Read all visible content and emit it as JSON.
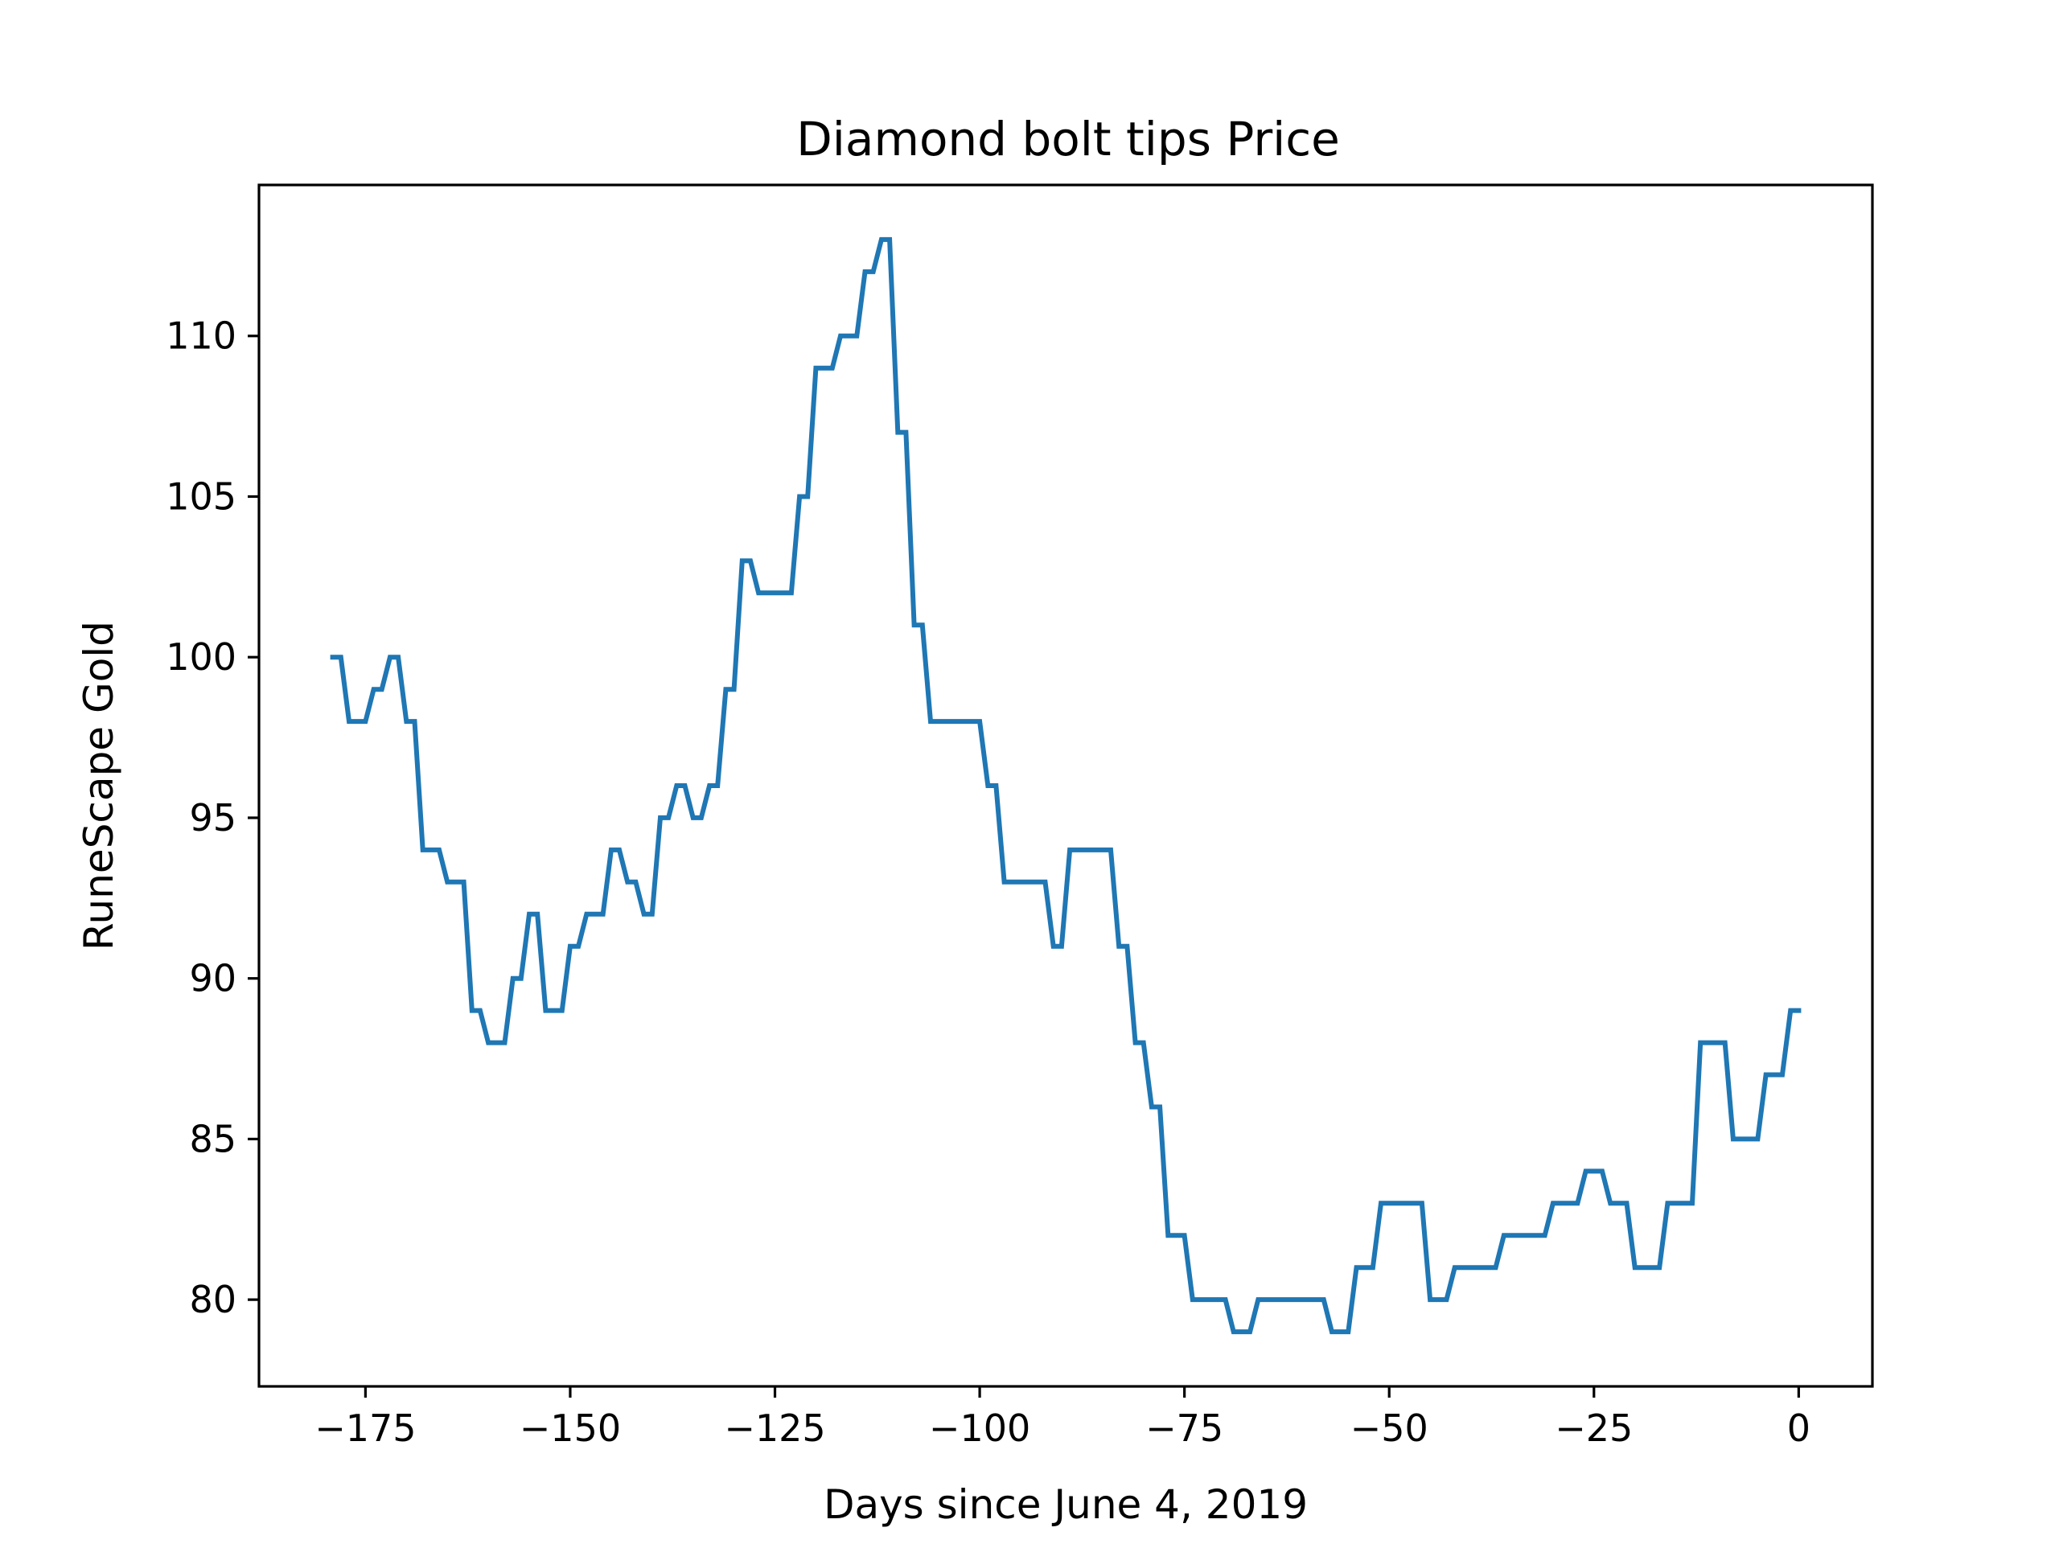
{
  "chart_data": {
    "type": "line",
    "title": "Diamond bolt tips Price",
    "xlabel": "Days since June 4, 2019",
    "ylabel": "RuneScape Gold",
    "xlim": [
      -188,
      9
    ],
    "ylim": [
      77.3,
      114.7
    ],
    "xticks": [
      -175,
      -150,
      -125,
      -100,
      -75,
      -50,
      -25,
      0
    ],
    "xtick_labels": [
      "−175",
      "−150",
      "−125",
      "−100",
      "−75",
      "−50",
      "−25",
      "0"
    ],
    "yticks": [
      80,
      85,
      90,
      95,
      100,
      105,
      110
    ],
    "ytick_labels": [
      "80",
      "85",
      "90",
      "95",
      "100",
      "105",
      "110"
    ],
    "grid": false,
    "line_color": "#1f77b4",
    "series": [
      {
        "x": [
          -179,
          -178,
          -177,
          -176,
          -175,
          -174,
          -173,
          -172,
          -171,
          -170,
          -169,
          -168,
          -167,
          -166,
          -165,
          -164,
          -163,
          -162,
          -161,
          -160,
          -159,
          -158,
          -157,
          -156,
          -155,
          -154,
          -153,
          -152,
          -151,
          -150,
          -149,
          -148,
          -147,
          -146,
          -145,
          -144,
          -143,
          -142,
          -141,
          -140,
          -139,
          -138,
          -137,
          -136,
          -135,
          -134,
          -133,
          -132,
          -131,
          -130,
          -129,
          -128,
          -127,
          -126,
          -125,
          -124,
          -123,
          -122,
          -121,
          -120,
          -119,
          -118,
          -117,
          -116,
          -115,
          -114,
          -113,
          -112,
          -111,
          -110,
          -109,
          -108,
          -107,
          -106,
          -105,
          -104,
          -103,
          -102,
          -101,
          -100,
          -99,
          -98,
          -97,
          -96,
          -95,
          -94,
          -93,
          -92,
          -91,
          -90,
          -89,
          -88,
          -87,
          -86,
          -85,
          -84,
          -83,
          -82,
          -81,
          -80,
          -79,
          -78,
          -77,
          -76,
          -75,
          -74,
          -73,
          -72,
          -71,
          -70,
          -69,
          -68,
          -67,
          -66,
          -65,
          -64,
          -63,
          -62,
          -61,
          -60,
          -59,
          -58,
          -57,
          -56,
          -55,
          -54,
          -53,
          -52,
          -51,
          -50,
          -49,
          -48,
          -47,
          -46,
          -45,
          -44,
          -43,
          -42,
          -41,
          -40,
          -39,
          -38,
          -37,
          -36,
          -35,
          -34,
          -33,
          -32,
          -31,
          -30,
          -29,
          -28,
          -27,
          -26,
          -25,
          -24,
          -23,
          -22,
          -21,
          -20,
          -19,
          -18,
          -17,
          -16,
          -15,
          -14,
          -13,
          -12,
          -11,
          -10,
          -9,
          -8,
          -7,
          -6,
          -5,
          -4,
          -3,
          -2,
          -1,
          0
        ],
        "y": [
          100,
          100,
          98,
          98,
          98,
          99,
          99,
          100,
          100,
          98,
          98,
          94,
          94,
          94,
          93,
          93,
          93,
          89,
          89,
          88,
          88,
          88,
          90,
          90,
          92,
          92,
          89,
          89,
          89,
          91,
          91,
          92,
          92,
          92,
          94,
          94,
          93,
          93,
          92,
          92,
          95,
          95,
          96,
          96,
          95,
          95,
          96,
          96,
          99,
          99,
          103,
          103,
          102,
          102,
          102,
          102,
          102,
          105,
          105,
          109,
          109,
          109,
          110,
          110,
          110,
          112,
          112,
          113,
          113,
          107,
          107,
          101,
          101,
          98,
          98,
          98,
          98,
          98,
          98,
          98,
          96,
          96,
          93,
          93,
          93,
          93,
          93,
          93,
          91,
          91,
          94,
          94,
          94,
          94,
          94,
          94,
          91,
          91,
          88,
          88,
          86,
          86,
          82,
          82,
          82,
          80,
          80,
          80,
          80,
          80,
          79,
          79,
          79,
          80,
          80,
          80,
          80,
          80,
          80,
          80,
          80,
          80,
          79,
          79,
          79,
          81,
          81,
          81,
          83,
          83,
          83,
          83,
          83,
          83,
          80,
          80,
          80,
          81,
          81,
          81,
          81,
          81,
          81,
          82,
          82,
          82,
          82,
          82,
          82,
          83,
          83,
          83,
          83,
          84,
          84,
          84,
          83,
          83,
          83,
          81,
          81,
          81,
          81,
          83,
          83,
          83,
          83,
          88,
          88,
          88,
          88,
          85,
          85,
          85,
          85,
          87,
          87,
          87,
          89,
          89
        ]
      }
    ]
  }
}
